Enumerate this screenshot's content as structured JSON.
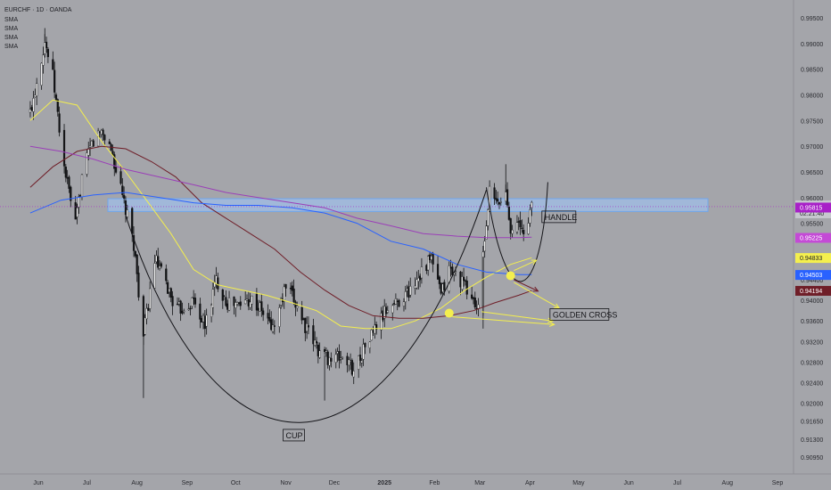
{
  "legend": {
    "title": "EURCHF · 1D · OANDA",
    "indicators": [
      "SMA",
      "SMA",
      "SMA",
      "SMA"
    ]
  },
  "chart_data": {
    "type": "candlestick",
    "symbol": "EURCHF",
    "interval": "1D",
    "source": "OANDA",
    "x_ticks": [
      "Jun",
      "Jul",
      "Aug",
      "Sep",
      "Oct",
      "Nov",
      "Dec",
      "2025",
      "Feb",
      "Mar",
      "Apr",
      "May",
      "Jun",
      "Jul",
      "Aug",
      "Sep"
    ],
    "y_ticks": [
      0.995,
      0.99,
      0.985,
      0.98,
      0.975,
      0.97,
      0.965,
      0.96,
      0.955,
      0.944,
      0.94,
      0.936,
      0.932,
      0.928,
      0.924,
      0.92,
      0.9165,
      0.913,
      0.9095
    ],
    "ylim": [
      0.9075,
      0.9975
    ],
    "price": {
      "last": "0.95824",
      "countdown": "02:21:40",
      "color": "#c6c8ce"
    },
    "price_labels": [
      {
        "value": "0.95815",
        "color": "#a820c8"
      },
      {
        "value": "0.95225",
        "color": "#c44ad6"
      },
      {
        "value": "0.94833",
        "color": "#f4ef4e"
      },
      {
        "value": "0.94503",
        "color": "#2962ff"
      },
      {
        "value": "0.94194",
        "color": "#6f1e28"
      }
    ],
    "close_anchors": [
      [
        "2024-05-27",
        0.9765
      ],
      [
        "2024-06-05",
        0.9905
      ],
      [
        "2024-06-10",
        0.9835
      ],
      [
        "2024-06-17",
        0.966
      ],
      [
        "2024-06-24",
        0.9545
      ],
      [
        "2024-06-28",
        0.964
      ],
      [
        "2024-07-04",
        0.9705
      ],
      [
        "2024-07-10",
        0.973
      ],
      [
        "2024-07-16",
        0.9695
      ],
      [
        "2024-07-23",
        0.96
      ],
      [
        "2024-07-30",
        0.951
      ],
      [
        "2024-08-05",
        0.933
      ],
      [
        "2024-08-12",
        0.948
      ],
      [
        "2024-08-19",
        0.943
      ],
      [
        "2024-08-26",
        0.938
      ],
      [
        "2024-09-05",
        0.94
      ],
      [
        "2024-09-12",
        0.935
      ],
      [
        "2024-09-19",
        0.944
      ],
      [
        "2024-09-26",
        0.9395
      ],
      [
        "2024-10-03",
        0.939
      ],
      [
        "2024-10-10",
        0.9405
      ],
      [
        "2024-10-17",
        0.938
      ],
      [
        "2024-10-24",
        0.9345
      ],
      [
        "2024-11-01",
        0.9425
      ],
      [
        "2024-11-08",
        0.939
      ],
      [
        "2024-11-15",
        0.9335
      ],
      [
        "2024-11-22",
        0.93
      ],
      [
        "2024-11-29",
        0.9285
      ],
      [
        "2024-12-06",
        0.929
      ],
      [
        "2024-12-13",
        0.9265
      ],
      [
        "2024-12-20",
        0.931
      ],
      [
        "2024-12-27",
        0.935
      ],
      [
        "2025-01-03",
        0.9385
      ],
      [
        "2025-01-10",
        0.94
      ],
      [
        "2025-01-17",
        0.942
      ],
      [
        "2025-01-24",
        0.946
      ],
      [
        "2025-01-30",
        0.948
      ],
      [
        "2025-02-05",
        0.941
      ],
      [
        "2025-02-10",
        0.946
      ],
      [
        "2025-02-17",
        0.944
      ],
      [
        "2025-02-24",
        0.9405
      ],
      [
        "2025-02-28",
        0.938
      ],
      [
        "2025-03-04",
        0.952
      ],
      [
        "2025-03-07",
        0.961
      ],
      [
        "2025-03-12",
        0.9585
      ],
      [
        "2025-03-17",
        0.961
      ],
      [
        "2025-03-20",
        0.9545
      ],
      [
        "2025-03-25",
        0.9545
      ],
      [
        "2025-03-28",
        0.953
      ],
      [
        "2025-04-02",
        0.9582
      ]
    ],
    "sma_series": [
      {
        "color": "#f4ef4e",
        "points": [
          [
            "2024-05-27",
            0.975
          ],
          [
            "2024-06-10",
            0.979
          ],
          [
            "2024-06-25",
            0.978
          ],
          [
            "2024-07-10",
            0.971
          ],
          [
            "2024-07-25",
            0.965
          ],
          [
            "2024-08-08",
            0.959
          ],
          [
            "2024-08-22",
            0.953
          ],
          [
            "2024-09-05",
            0.946
          ],
          [
            "2024-09-20",
            0.943
          ],
          [
            "2024-10-05",
            0.942
          ],
          [
            "2024-10-20",
            0.941
          ],
          [
            "2024-11-05",
            0.9395
          ],
          [
            "2024-11-20",
            0.938
          ],
          [
            "2024-12-05",
            0.935
          ],
          [
            "2024-12-20",
            0.9345
          ],
          [
            "2025-01-05",
            0.9345
          ],
          [
            "2025-01-20",
            0.936
          ],
          [
            "2025-02-05",
            0.9385
          ],
          [
            "2025-02-20",
            0.942
          ],
          [
            "2025-03-05",
            0.9445
          ],
          [
            "2025-03-20",
            0.947
          ],
          [
            "2025-04-02",
            0.9483
          ]
        ]
      },
      {
        "color": "#6f1e28",
        "points": [
          [
            "2024-05-27",
            0.962
          ],
          [
            "2024-06-10",
            0.966
          ],
          [
            "2024-06-25",
            0.969
          ],
          [
            "2024-07-10",
            0.97
          ],
          [
            "2024-07-25",
            0.9695
          ],
          [
            "2024-08-10",
            0.967
          ],
          [
            "2024-08-25",
            0.964
          ],
          [
            "2024-09-10",
            0.959
          ],
          [
            "2024-09-25",
            0.956
          ],
          [
            "2024-10-10",
            0.953
          ],
          [
            "2024-10-25",
            0.95
          ],
          [
            "2024-11-10",
            0.9455
          ],
          [
            "2024-11-25",
            0.942
          ],
          [
            "2024-12-10",
            0.939
          ],
          [
            "2024-12-25",
            0.937
          ],
          [
            "2025-01-10",
            0.9365
          ],
          [
            "2025-01-25",
            0.9365
          ],
          [
            "2025-02-10",
            0.937
          ],
          [
            "2025-02-25",
            0.938
          ],
          [
            "2025-03-10",
            0.9395
          ],
          [
            "2025-03-25",
            0.941
          ],
          [
            "2025-04-02",
            0.9419
          ]
        ]
      },
      {
        "color": "#9b3fb8",
        "points": [
          [
            "2024-05-27",
            0.97
          ],
          [
            "2024-06-15",
            0.969
          ],
          [
            "2024-07-05",
            0.9675
          ],
          [
            "2024-07-25",
            0.9655
          ],
          [
            "2024-08-15",
            0.964
          ],
          [
            "2024-09-05",
            0.9625
          ],
          [
            "2024-09-25",
            0.961
          ],
          [
            "2024-10-15",
            0.96
          ],
          [
            "2024-11-05",
            0.959
          ],
          [
            "2024-11-25",
            0.958
          ],
          [
            "2024-12-15",
            0.956
          ],
          [
            "2025-01-05",
            0.9545
          ],
          [
            "2025-01-25",
            0.953
          ],
          [
            "2025-02-15",
            0.9525
          ],
          [
            "2025-03-05",
            0.9522
          ],
          [
            "2025-03-25",
            0.9522
          ],
          [
            "2025-04-02",
            0.9523
          ]
        ]
      },
      {
        "color": "#2962ff",
        "points": [
          [
            "2024-05-27",
            0.957
          ],
          [
            "2024-06-15",
            0.9595
          ],
          [
            "2024-07-05",
            0.9605
          ],
          [
            "2024-07-25",
            0.961
          ],
          [
            "2024-08-15",
            0.96
          ],
          [
            "2024-09-05",
            0.959
          ],
          [
            "2024-09-25",
            0.9585
          ],
          [
            "2024-10-15",
            0.9585
          ],
          [
            "2024-11-05",
            0.958
          ],
          [
            "2024-11-25",
            0.957
          ],
          [
            "2024-12-15",
            0.955
          ],
          [
            "2025-01-05",
            0.9515
          ],
          [
            "2025-01-25",
            0.95
          ],
          [
            "2025-02-15",
            0.947
          ],
          [
            "2025-03-05",
            0.9455
          ],
          [
            "2025-03-25",
            0.945
          ],
          [
            "2025-04-02",
            0.945
          ]
        ]
      }
    ],
    "annotations": [
      {
        "label": "CUP",
        "type": "arc",
        "x": "2024-11-01",
        "y": 0.9135
      },
      {
        "label": "HANDLE",
        "type": "arc",
        "x": "2025-04-10",
        "y": 0.956
      },
      {
        "label": "GOLDEN CROSS",
        "type": "marker",
        "x": "2025-04-15",
        "y": 0.937
      },
      {
        "label": "",
        "type": "zone",
        "x": [
          "2024-07-14",
          "2025-07-20"
        ],
        "y": [
          0.9573,
          0.9598
        ],
        "color": "#90c2ff"
      }
    ]
  }
}
